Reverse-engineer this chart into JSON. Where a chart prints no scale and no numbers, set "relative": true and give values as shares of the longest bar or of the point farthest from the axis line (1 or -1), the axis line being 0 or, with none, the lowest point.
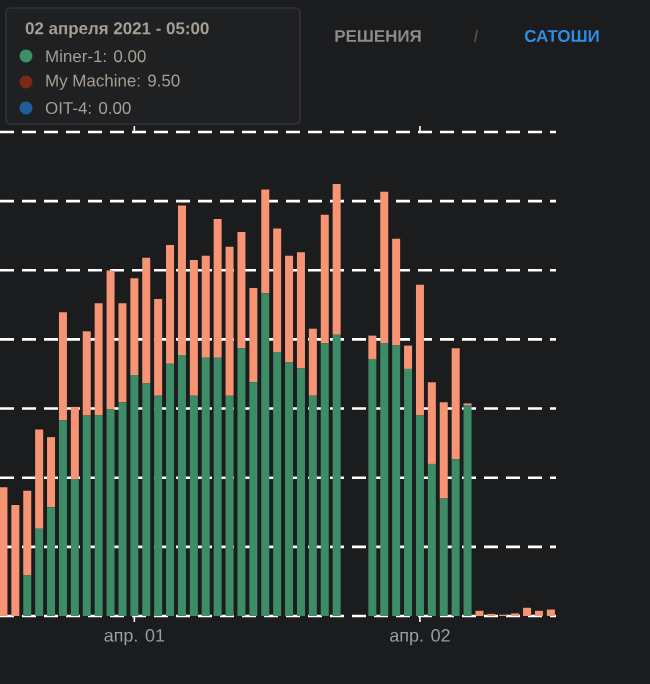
{
  "chart_data": {
    "type": "bar",
    "stacked": true,
    "relative": true,
    "grid": "y",
    "tick_labels": "x",
    "categories": [
      null,
      null,
      null,
      null,
      null,
      null,
      null,
      null,
      null,
      null,
      null,
      "апр. 01",
      null,
      null,
      null,
      null,
      null,
      null,
      null,
      null,
      null,
      null,
      null,
      null,
      null,
      null,
      null,
      null,
      null,
      null,
      null,
      null,
      null,
      null,
      null,
      "апр. 02",
      null,
      null,
      null,
      null,
      null,
      null,
      null,
      null,
      null,
      null,
      null
    ],
    "series": [
      {
        "color": "#3d8c67",
        "values": [
          0,
          0,
          0.094,
          0.202,
          0.252,
          0.453,
          0.317,
          0.464,
          0.464,
          0.479,
          0.495,
          0.558,
          0.538,
          0.51,
          0.584,
          0.604,
          0.51,
          0.598,
          0.598,
          0.51,
          0.62,
          0.541,
          0.747,
          0.611,
          0.587,
          0.573,
          0.51,
          0.631,
          0.651,
          null,
          null,
          0.595,
          0.631,
          0.626,
          0.572,
          0.464,
          0.352,
          0.272,
          0.363,
          0.487,
          0,
          0,
          0,
          0,
          0,
          0,
          0
        ]
      },
      {
        "color": "#f79473",
        "values": [
          0.298,
          0.257,
          0.196,
          0.23,
          0.162,
          0.25,
          0.167,
          0.195,
          0.26,
          0.321,
          0.229,
          0.224,
          0.291,
          0.224,
          0.275,
          0.346,
          0.314,
          0.236,
          0.321,
          0.345,
          0.269,
          0.218,
          0.24,
          0.286,
          0.247,
          0.269,
          0.155,
          0.298,
          0.349,
          null,
          null,
          0.054,
          0.351,
          0.247,
          0.054,
          0.303,
          0.189,
          0.223,
          0.257,
          0.005,
          0.012,
          0.005,
          0.003,
          0.006,
          0.019,
          0.012,
          0.015
        ]
      }
    ],
    "annotations": [
      "РЕШЕНИЯ",
      "/",
      "САТОШИ",
      "02 апреля 2021 - 05:00",
      "Miner-1: 0.00",
      "My Machine: 9.50",
      "OIT-4: 0.00"
    ]
  }
}
